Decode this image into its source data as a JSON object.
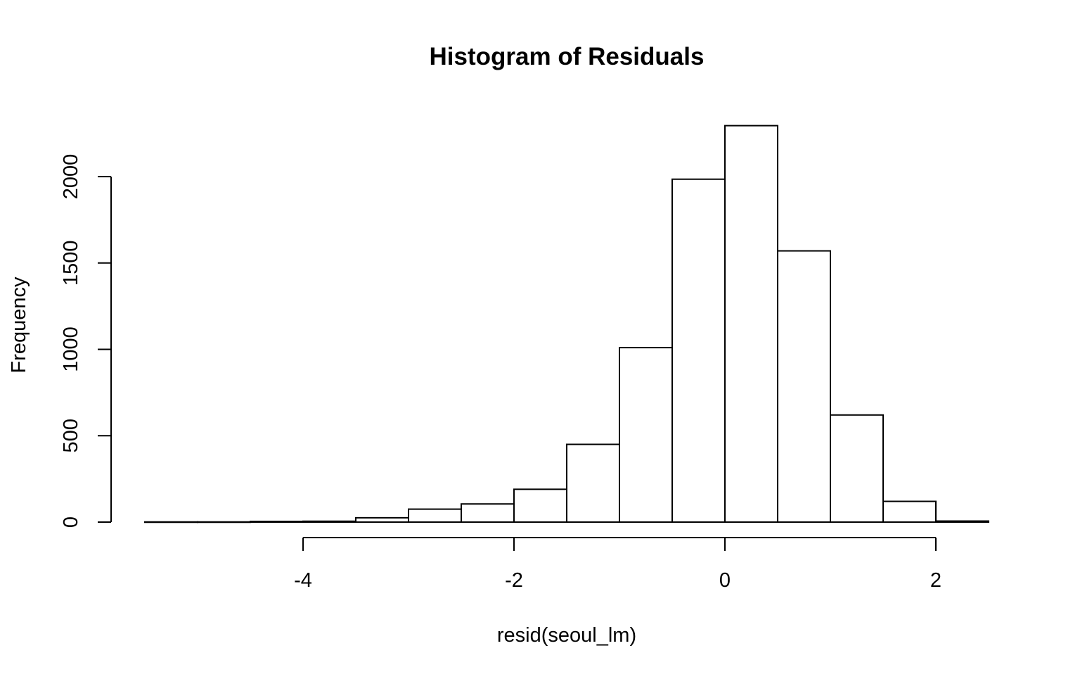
{
  "chart_data": {
    "type": "bar",
    "title": "Histogram of Residuals",
    "xlabel": "resid(seoul_lm)",
    "ylabel": "Frequency",
    "bins": [
      {
        "x0": -5.5,
        "x1": -5.0,
        "count": 1
      },
      {
        "x0": -5.0,
        "x1": -4.5,
        "count": 1
      },
      {
        "x0": -4.5,
        "x1": -4.0,
        "count": 4
      },
      {
        "x0": -4.0,
        "x1": -3.5,
        "count": 5
      },
      {
        "x0": -3.5,
        "x1": -3.0,
        "count": 25
      },
      {
        "x0": -3.0,
        "x1": -2.5,
        "count": 75
      },
      {
        "x0": -2.5,
        "x1": -2.0,
        "count": 105
      },
      {
        "x0": -2.0,
        "x1": -1.5,
        "count": 190
      },
      {
        "x0": -1.5,
        "x1": -1.0,
        "count": 450
      },
      {
        "x0": -1.0,
        "x1": -0.5,
        "count": 1010
      },
      {
        "x0": -0.5,
        "x1": 0.0,
        "count": 1985
      },
      {
        "x0": 0.0,
        "x1": 0.5,
        "count": 2295
      },
      {
        "x0": 0.5,
        "x1": 1.0,
        "count": 1570
      },
      {
        "x0": 1.0,
        "x1": 1.5,
        "count": 620
      },
      {
        "x0": 1.5,
        "x1": 2.0,
        "count": 120
      },
      {
        "x0": 2.0,
        "x1": 2.5,
        "count": 6
      }
    ],
    "xlim": [
      -5.5,
      2.5
    ],
    "ylim": [
      0,
      2300
    ],
    "x_ticks": [
      {
        "value": -4,
        "label": "-4"
      },
      {
        "value": -2,
        "label": "-2"
      },
      {
        "value": 0,
        "label": "0"
      },
      {
        "value": 2,
        "label": "2"
      }
    ],
    "y_ticks": [
      {
        "value": 0,
        "label": "0"
      },
      {
        "value": 500,
        "label": "500"
      },
      {
        "value": 1000,
        "label": "1000"
      },
      {
        "value": 1500,
        "label": "1500"
      },
      {
        "value": 2000,
        "label": "2000"
      }
    ],
    "bar_fill": "#ffffff",
    "bar_stroke": "#000000",
    "grid": false,
    "legend": "none"
  }
}
